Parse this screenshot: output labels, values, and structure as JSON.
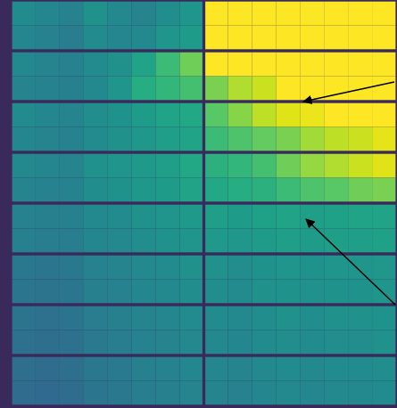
{
  "chart_data": {
    "type": "heatmap",
    "tick_labels": false,
    "panels": {
      "columns": 2,
      "rows": 8
    },
    "zlim": [
      0,
      100
    ],
    "cells": [
      [
        48,
        46,
        44,
        50,
        47,
        45,
        49,
        52,
        100,
        100,
        100,
        100,
        100,
        100,
        100,
        100
      ],
      [
        46,
        44,
        42,
        48,
        46,
        47,
        52,
        55,
        100,
        100,
        100,
        100,
        100,
        100,
        100,
        100
      ],
      [
        47,
        45,
        44,
        48,
        50,
        58,
        68,
        78,
        100,
        100,
        100,
        100,
        100,
        100,
        100,
        100
      ],
      [
        45,
        44,
        43,
        47,
        52,
        62,
        66,
        70,
        80,
        88,
        92,
        100,
        100,
        100,
        100,
        100
      ],
      [
        48,
        46,
        45,
        49,
        51,
        55,
        58,
        60,
        74,
        82,
        90,
        95,
        97,
        100,
        100,
        100
      ],
      [
        46,
        45,
        44,
        48,
        50,
        53,
        56,
        58,
        68,
        72,
        76,
        80,
        86,
        90,
        92,
        96
      ],
      [
        47,
        46,
        45,
        50,
        52,
        54,
        56,
        60,
        64,
        66,
        70,
        78,
        84,
        88,
        92,
        95
      ],
      [
        45,
        44,
        44,
        49,
        51,
        53,
        55,
        58,
        60,
        62,
        64,
        68,
        72,
        74,
        78,
        80
      ],
      [
        44,
        43,
        43,
        47,
        48,
        50,
        52,
        54,
        56,
        55,
        57,
        58,
        56,
        57,
        58,
        58
      ],
      [
        43,
        42,
        42,
        46,
        47,
        49,
        51,
        52,
        54,
        53,
        55,
        56,
        55,
        56,
        56,
        57
      ],
      [
        40,
        39,
        40,
        44,
        45,
        47,
        48,
        50,
        50,
        49,
        51,
        52,
        51,
        52,
        52,
        53
      ],
      [
        39,
        38,
        39,
        43,
        44,
        46,
        47,
        49,
        49,
        48,
        50,
        51,
        50,
        51,
        51,
        52
      ],
      [
        38,
        37,
        38,
        42,
        43,
        45,
        46,
        48,
        48,
        47,
        49,
        50,
        49,
        50,
        50,
        51
      ],
      [
        37,
        36,
        37,
        41,
        42,
        44,
        45,
        47,
        47,
        46,
        48,
        49,
        48,
        49,
        49,
        50
      ],
      [
        36,
        35,
        36,
        40,
        41,
        43,
        44,
        46,
        46,
        45,
        47,
        48,
        47,
        48,
        48,
        49
      ],
      [
        35,
        34,
        35,
        39,
        40,
        42,
        43,
        45,
        45,
        44,
        46,
        47,
        46,
        47,
        47,
        48
      ]
    ]
  }
}
